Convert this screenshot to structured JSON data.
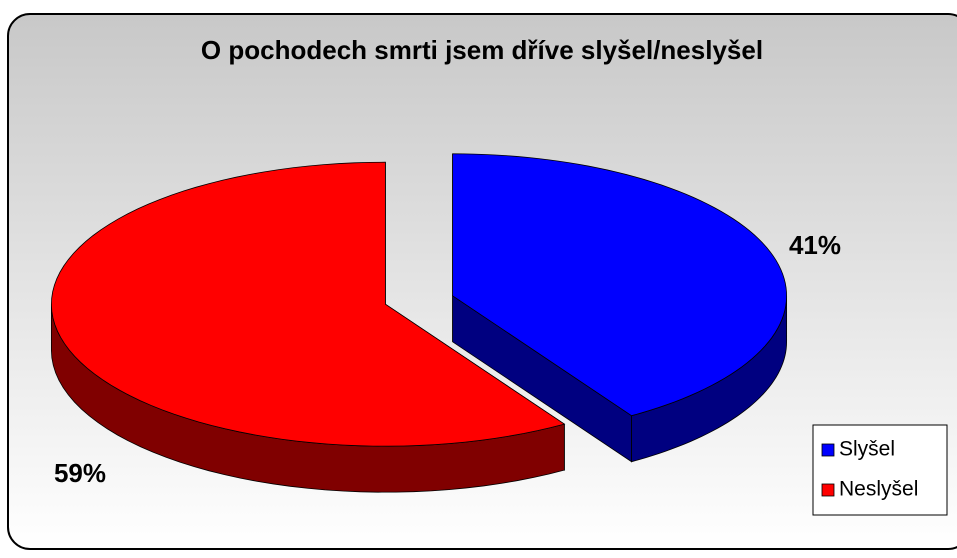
{
  "chart_data": {
    "type": "pie",
    "title": "O pochodech smrti jsem dříve slyšel/neslyšel",
    "categories": [
      "Slyšel",
      "Neslyšel"
    ],
    "values": [
      41,
      59
    ],
    "value_labels": [
      "41%",
      "59%"
    ],
    "colors": [
      "#0000ff",
      "#ff0000"
    ],
    "legend": "right"
  }
}
